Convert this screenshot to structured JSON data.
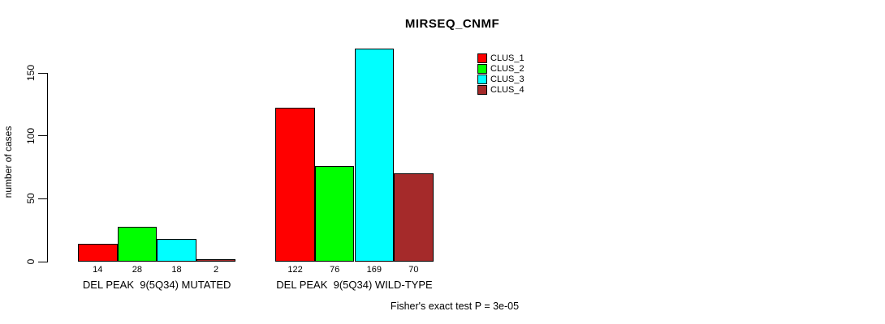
{
  "chart_data": {
    "type": "bar",
    "title": "MIRSEQ_CNMF",
    "ylabel": "number of cases",
    "yticks": [
      0,
      50,
      100,
      150
    ],
    "ylim": [
      0,
      170
    ],
    "grid": false,
    "legend_position": "top-right",
    "groups": [
      "DEL PEAK  9(5Q34) MUTATED",
      "DEL PEAK  9(5Q34) WILD-TYPE"
    ],
    "series": [
      {
        "name": "CLUS_1",
        "color": "#ff0000",
        "values": [
          14,
          122
        ]
      },
      {
        "name": "CLUS_2",
        "color": "#00ff00",
        "values": [
          28,
          76
        ]
      },
      {
        "name": "CLUS_3",
        "color": "#00ffff",
        "values": [
          18,
          169
        ]
      },
      {
        "name": "CLUS_4",
        "color": "#a52a2a",
        "values": [
          2,
          70
        ]
      }
    ],
    "annotation": "Fisher's exact test P = 3e-05"
  }
}
